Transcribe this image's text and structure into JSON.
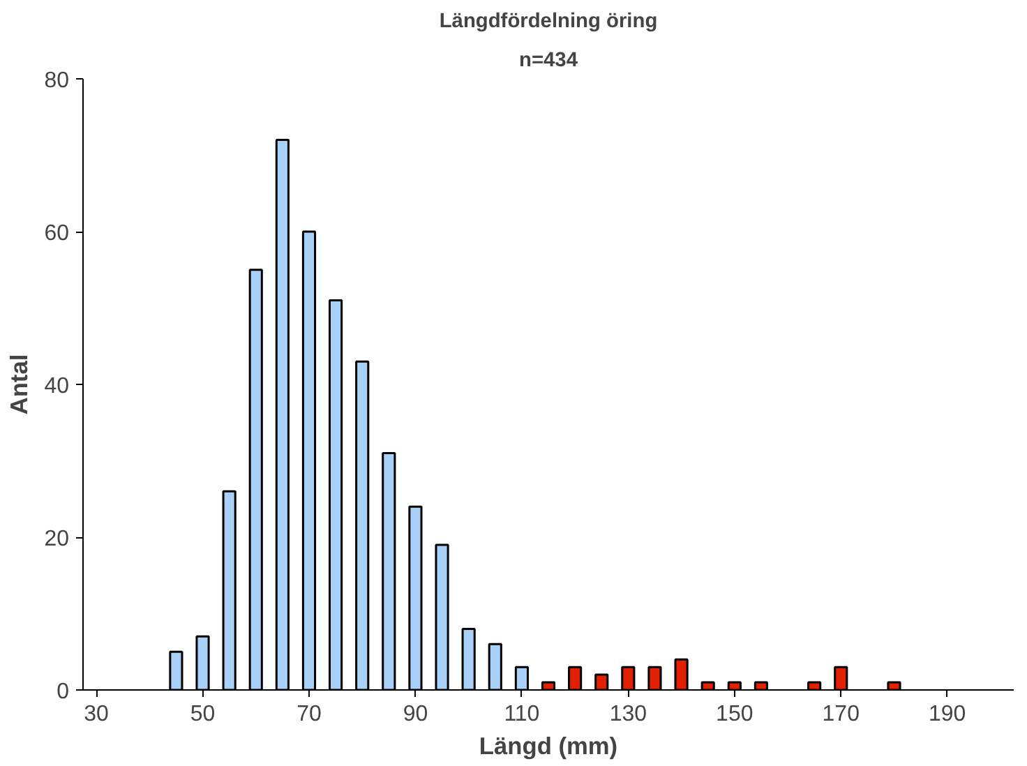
{
  "chart_data": {
    "type": "bar",
    "title": "Längdfördelning öring",
    "subtitle": "n=434",
    "xlabel": "Längd (mm)",
    "ylabel": "Antal",
    "categories": [
      "30",
      null,
      null,
      null,
      "50",
      null,
      null,
      null,
      "70",
      null,
      null,
      null,
      "90",
      null,
      null,
      null,
      "110",
      null,
      null,
      null,
      "130",
      null,
      null,
      null,
      "150",
      null,
      null,
      null,
      "170",
      null,
      null,
      null,
      "190",
      null,
      null
    ],
    "values": [
      null,
      null,
      null,
      5,
      7,
      26,
      55,
      72,
      60,
      51,
      43,
      31,
      24,
      19,
      8,
      6,
      3,
      1,
      3,
      2,
      3,
      3,
      4,
      1,
      1,
      1,
      null,
      1,
      3,
      null,
      1,
      null,
      null,
      null,
      null
    ],
    "colors": [
      "#a9d1f7",
      "#a9d1f7",
      "#a9d1f7",
      "#a9d1f7",
      "#a9d1f7",
      "#a9d1f7",
      "#a9d1f7",
      "#a9d1f7",
      "#a9d1f7",
      "#a9d1f7",
      "#a9d1f7",
      "#a9d1f7",
      "#a9d1f7",
      "#a9d1f7",
      "#a9d1f7",
      "#a9d1f7",
      "#a9d1f7",
      "#e02000",
      "#e02000",
      "#e02000",
      "#e02000",
      "#e02000",
      "#e02000",
      "#e02000",
      "#e02000",
      "#e02000",
      "#e02000",
      "#e02000",
      "#e02000",
      "#e02000",
      "#e02000",
      "#e02000",
      "#e02000",
      "#e02000",
      "#e02000"
    ],
    "ylim": [
      0,
      80
    ],
    "yticks": [
      0,
      20,
      40,
      60,
      80
    ],
    "grid": false
  }
}
